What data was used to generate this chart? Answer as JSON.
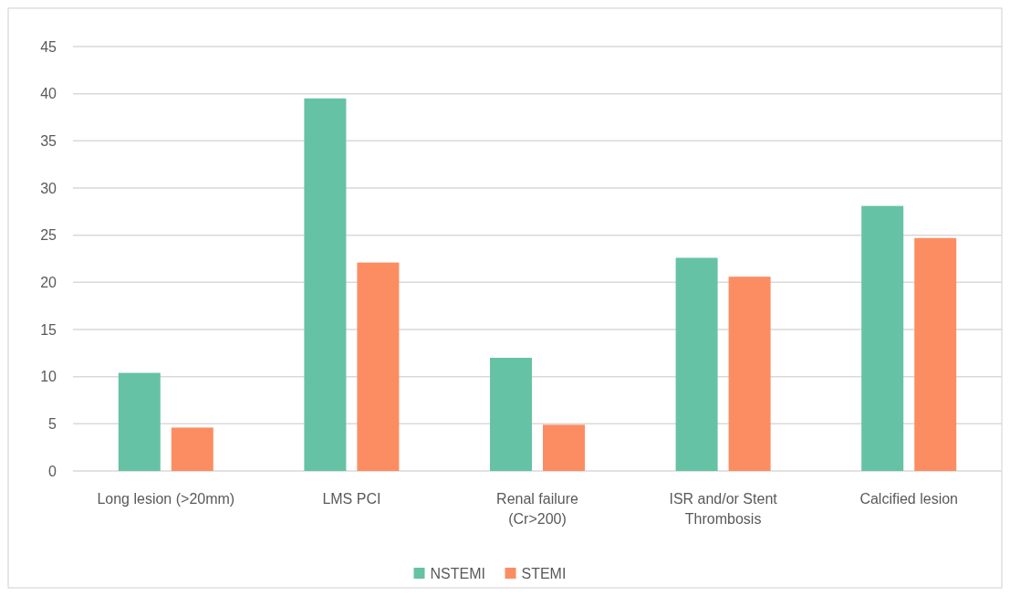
{
  "chart_data": {
    "type": "bar",
    "categories": [
      "Long lesion (>20mm)",
      "LMS PCI",
      "Renal failure (Cr>200)",
      "ISR and/or Stent Thrombosis",
      "Calcified lesion"
    ],
    "series": [
      {
        "name": "NSTEMI",
        "color": "#66c2a5",
        "values": [
          10.4,
          39.5,
          12.0,
          22.6,
          28.1
        ]
      },
      {
        "name": "STEMI",
        "color": "#fc8d62",
        "values": [
          4.6,
          22.1,
          4.9,
          20.6,
          24.7
        ]
      }
    ],
    "ylim": [
      0,
      45
    ],
    "yticks": [
      0,
      5,
      10,
      15,
      20,
      25,
      30,
      35,
      40,
      45
    ],
    "grid": "y",
    "legend": "bottom"
  }
}
